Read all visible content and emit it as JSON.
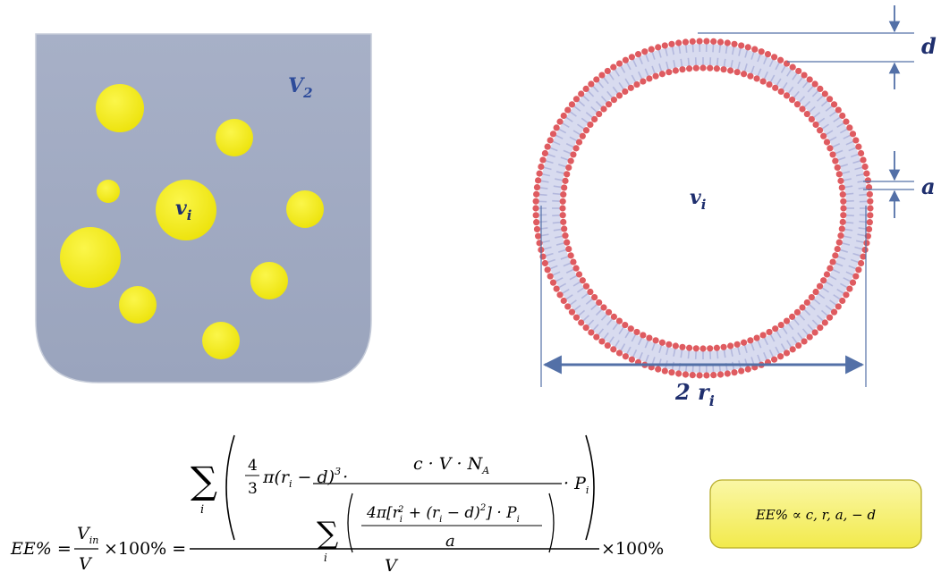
{
  "container": {
    "volume_label": "V",
    "volume_label_sub": "2",
    "vesicle_label": "v",
    "vesicle_label_sub": "i",
    "fill_color": "#a3adc4",
    "particle_color": "#f5ed14"
  },
  "liposome": {
    "thickness_label": "d",
    "spacing_label": "a",
    "center_label": "v",
    "center_label_sub": "i",
    "diameter_label": "2 r",
    "diameter_label_sub": "i",
    "head_color": "#df5b60",
    "tail_color": "#b3b8dd",
    "dimension_color": "#5370a7"
  },
  "equation": {
    "lhs": "EE% =",
    "ratio_num": "V",
    "ratio_num_sub": "in",
    "ratio_den": "V",
    "times_100": "×100% =",
    "sum_symbol": "∑",
    "index": "i",
    "frac_43_num": "4",
    "frac_43_den": "3",
    "pi_term": "π(r",
    "pi_term_sub": "i",
    "pi_term_rest": " − d)",
    "cube": "3",
    "dot": "·",
    "numerator": "c · V · N",
    "numerator_sub": "A",
    "inner_num_a": "4π[r",
    "inner_num_a_sub": "i",
    "inner_num_a_sup": "2",
    "inner_num_b": " + (r",
    "inner_num_b_sub": "i",
    "inner_num_c": " − d)",
    "inner_num_c_sup": "2",
    "inner_num_d": "] · P",
    "inner_num_d_sub": "i",
    "inner_den": "a",
    "tail_p": "· P",
    "tail_p_sub": "i",
    "outer_den": "V",
    "suffix": "×100%"
  },
  "proportional": {
    "text": "EE% ∝  c,  r,  a,  − d",
    "box_color": "#f7f171"
  }
}
